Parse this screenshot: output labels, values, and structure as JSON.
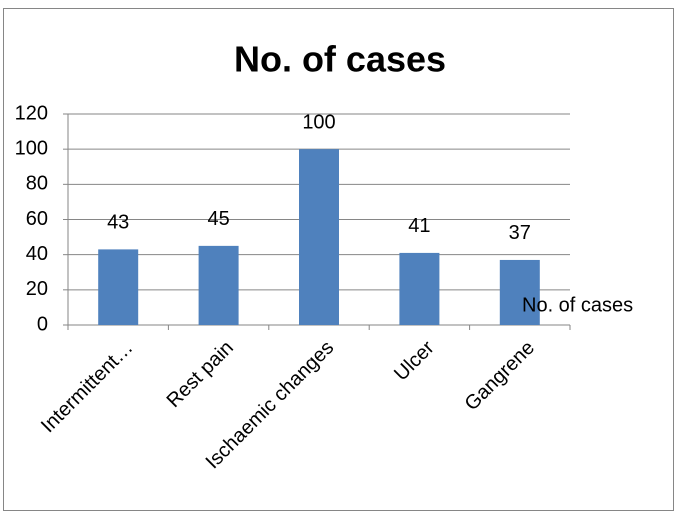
{
  "chart_data": {
    "type": "bar",
    "title": "No. of cases",
    "categories": [
      "Intermittent…",
      "Rest pain",
      "Ischaemic changes",
      "Ulcer",
      "Gangrene"
    ],
    "series": [
      {
        "name": "No. of cases",
        "color": "#4f81bd",
        "values": [
          43,
          45,
          100,
          41,
          37
        ]
      }
    ],
    "ylim": [
      0,
      120
    ],
    "yticks": [
      0,
      20,
      40,
      60,
      80,
      100,
      120
    ],
    "grid": true,
    "legend": "right"
  }
}
